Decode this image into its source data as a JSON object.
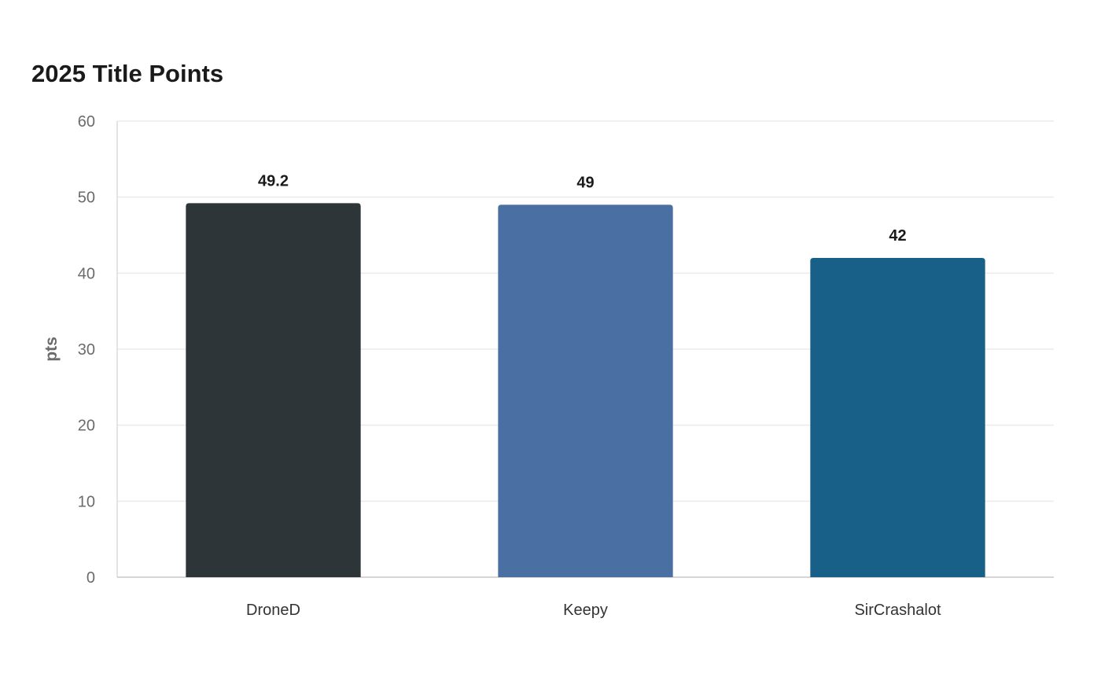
{
  "chart_data": {
    "type": "bar",
    "title": "2025 Title Points",
    "xlabel": "",
    "ylabel": "pts",
    "categories": [
      "DroneD",
      "Keepy",
      "SirCrashalot"
    ],
    "values": [
      49.2,
      49,
      42
    ],
    "value_labels": [
      "49.2",
      "49",
      "42"
    ],
    "colors": [
      "#2e3538",
      "#4a6fa3",
      "#186088"
    ],
    "ylim": [
      0,
      60
    ],
    "yticks": [
      0,
      10,
      20,
      30,
      40,
      50,
      60
    ],
    "grid": true,
    "legend": "none"
  }
}
